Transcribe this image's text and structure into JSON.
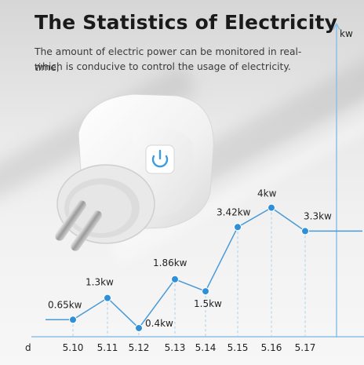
{
  "header": {
    "title": "The Statistics of Electricity",
    "subtitle_line1": "The amount of electric power can be monitored in real-time,",
    "subtitle_line2": "which is conducive to control the usage of electricity."
  },
  "chart_data": {
    "type": "line",
    "x": [
      "5.10",
      "5.11",
      "5.12",
      "5.13",
      "5.14",
      "5.15",
      "5.16",
      "5.17"
    ],
    "values": [
      0.65,
      1.3,
      0.4,
      1.86,
      1.5,
      3.42,
      4,
      3.3
    ],
    "data_labels": [
      "0.65kw",
      "1.3kw",
      "0.4kw",
      "1.86kw",
      "1.5kw",
      "3.42kw",
      "4kw",
      "3.3kw"
    ],
    "xlabel": "d",
    "ylabel": "kw",
    "ylim": [
      0,
      5
    ],
    "line_color": "#4a9ad6",
    "point_color": "#2f8fd8"
  },
  "colors": {
    "title": "#1a1a1a",
    "accent_blue": "#4a9ad6",
    "plug_body": "#f4f4f4"
  },
  "product": {
    "power_icon": "power-icon"
  }
}
